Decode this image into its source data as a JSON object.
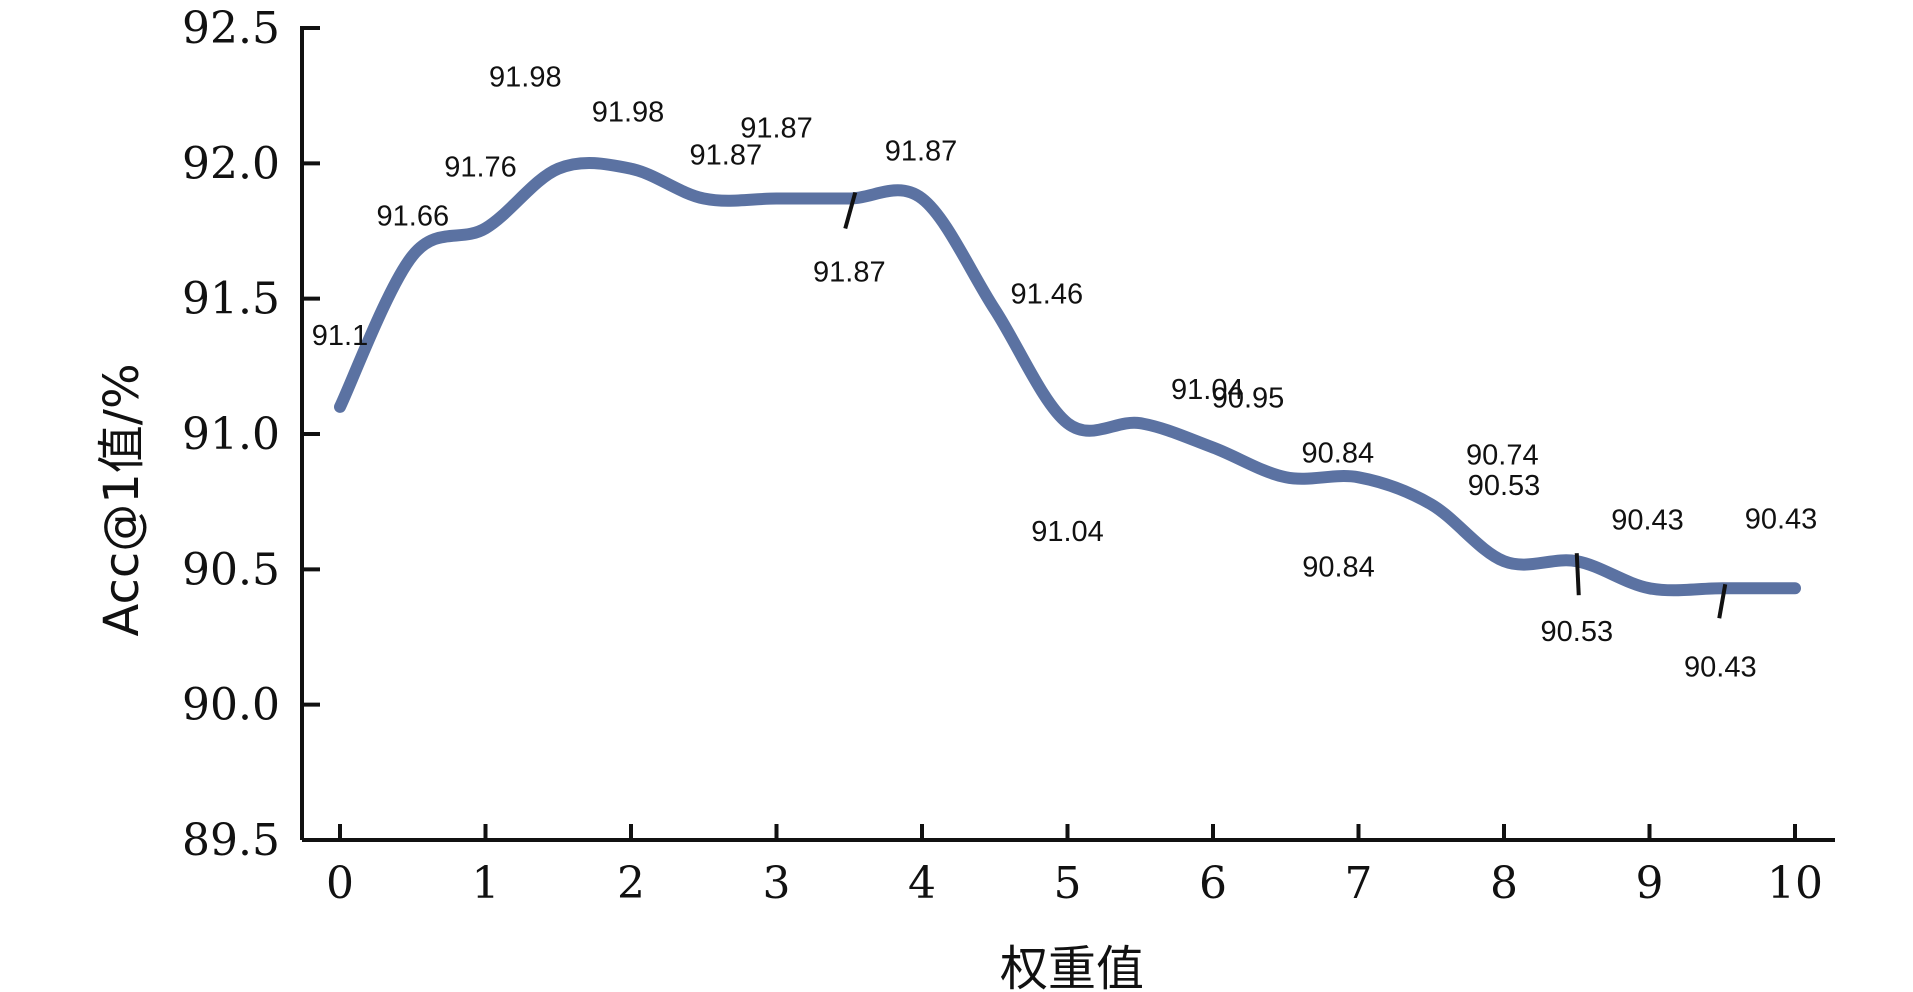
{
  "chart_data": {
    "type": "line",
    "xlabel": "权重值",
    "ylabel": "Acc@1值/%",
    "xlim": [
      0,
      10
    ],
    "ylim": [
      89.5,
      92.5
    ],
    "x_ticks": [
      "0",
      "1",
      "2",
      "3",
      "4",
      "5",
      "6",
      "7",
      "8",
      "9",
      "10"
    ],
    "y_ticks": [
      "89.5",
      "90.0",
      "90.5",
      "91.0",
      "91.5",
      "92.0",
      "92.5"
    ],
    "line_color": "#5b72a2",
    "series": [
      {
        "x": [
          0,
          0.5,
          1,
          1.5,
          2,
          2.5,
          3,
          3.5,
          4,
          4.5,
          5,
          5.5,
          6,
          6.5,
          7,
          7.5,
          8,
          8.5,
          9,
          9.5,
          10
        ],
        "values": [
          91.1,
          91.66,
          91.76,
          91.98,
          91.98,
          91.87,
          91.87,
          91.87,
          91.87,
          91.46,
          91.04,
          91.04,
          90.95,
          90.84,
          90.84,
          90.74,
          90.53,
          90.53,
          90.43,
          90.43,
          90.43
        ],
        "labels": [
          "91.1",
          "91.66",
          "91.76",
          "91.98",
          "91.98",
          "91.87",
          "91.87",
          "91.87",
          "91.87",
          "91.46",
          "91.04",
          "91.04",
          "90.95",
          "90.84",
          "90.84",
          "90.74",
          "90.53",
          "90.53",
          "90.43",
          "90.43",
          "90.43"
        ]
      }
    ]
  }
}
